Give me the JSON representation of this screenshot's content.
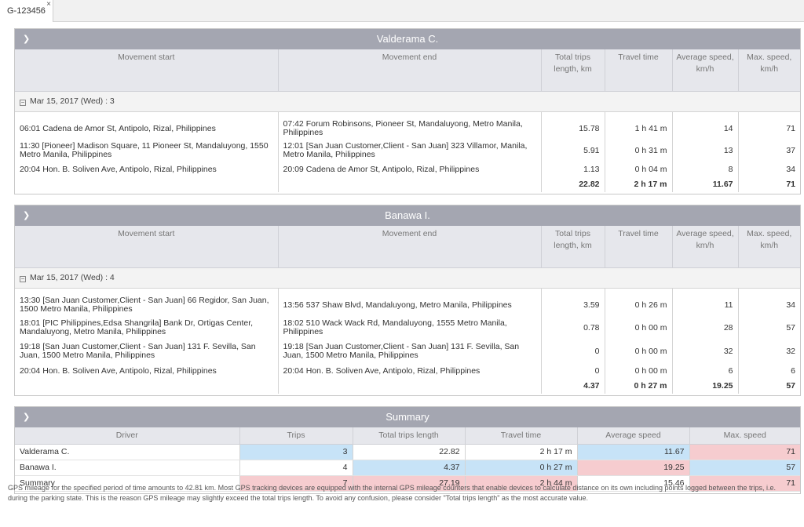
{
  "tab": {
    "label": "G-123456",
    "close": "×"
  },
  "columns": {
    "start": "Movement start",
    "end": "Movement end",
    "length": "Total trips length, km",
    "time": "Travel time",
    "avg": "Average speed, km/h",
    "max": "Max. speed, km/h"
  },
  "drivers": [
    {
      "name": "Valderama C.",
      "group": "Mar 15, 2017 (Wed) : 3",
      "rows": [
        {
          "start": "06:01 Cadena de Amor St, Antipolo, Rizal, Philippines",
          "end": "07:42 Forum Robinsons, Pioneer St, Mandaluyong, Metro Manila, Philippines",
          "length": "15.78",
          "time": "1 h 41 m",
          "avg": "14",
          "max": "71"
        },
        {
          "start": "11:30 [Pioneer] Madison Square, 11 Pioneer St, Mandaluyong, 1550 Metro Manila, Philippines",
          "end": "12:01 [San Juan Customer,Client - San Juan] 323 Villamor, Manila, Metro Manila, Philippines",
          "length": "5.91",
          "time": "0 h 31 m",
          "avg": "13",
          "max": "37"
        },
        {
          "start": "20:04 Hon. B. Soliven Ave, Antipolo, Rizal, Philippines",
          "end": "20:09 Cadena de Amor St, Antipolo, Rizal, Philippines",
          "length": "1.13",
          "time": "0 h 04 m",
          "avg": "8",
          "max": "34"
        }
      ],
      "total": {
        "length": "22.82",
        "time": "2 h 17 m",
        "avg": "11.67",
        "max": "71"
      }
    },
    {
      "name": "Banawa I.",
      "group": "Mar 15, 2017 (Wed) : 4",
      "rows": [
        {
          "start": "13:30 [San Juan Customer,Client - San Juan] 66 Regidor, San Juan, 1500 Metro Manila, Philippines",
          "end": "13:56 537 Shaw Blvd, Mandaluyong, Metro Manila, Philippines",
          "length": "3.59",
          "time": "0 h 26 m",
          "avg": "11",
          "max": "34"
        },
        {
          "start": "18:01 [PIC Philippines,Edsa Shangrila] Bank Dr, Ortigas Center, Mandaluyong, Metro Manila, Philippines",
          "end": "18:02 510 Wack Wack Rd, Mandaluyong, 1555 Metro Manila, Philippines",
          "length": "0.78",
          "time": "0 h 00 m",
          "avg": "28",
          "max": "57"
        },
        {
          "start": "19:18 [San Juan Customer,Client - San Juan] 131 F. Sevilla, San Juan, 1500 Metro Manila, Philippines",
          "end": "19:18 [San Juan Customer,Client - San Juan] 131 F. Sevilla, San Juan, 1500 Metro Manila, Philippines",
          "length": "0",
          "time": "0 h 00 m",
          "avg": "32",
          "max": "32"
        },
        {
          "start": "20:04 Hon. B. Soliven Ave, Antipolo, Rizal, Philippines",
          "end": "20:04 Hon. B. Soliven Ave, Antipolo, Rizal, Philippines",
          "length": "0",
          "time": "0 h 00 m",
          "avg": "6",
          "max": "6"
        }
      ],
      "total": {
        "length": "4.37",
        "time": "0 h 27 m",
        "avg": "19.25",
        "max": "57"
      }
    }
  ],
  "summary": {
    "title": "Summary",
    "columns": {
      "driver": "Driver",
      "trips": "Trips",
      "length": "Total trips length",
      "time": "Travel time",
      "avg": "Average speed",
      "max": "Max. speed"
    },
    "rows": [
      {
        "driver": "Valderama C.",
        "trips": "3",
        "length": "22.82",
        "time": "2 h 17 m",
        "avg": "11.67",
        "max": "71"
      },
      {
        "driver": "Banawa I.",
        "trips": "4",
        "length": "4.37",
        "time": "0 h 27 m",
        "avg": "19.25",
        "max": "57"
      },
      {
        "driver": "Summary",
        "trips": "7",
        "length": "27.19",
        "time": "2 h 44 m",
        "avg": "15.46",
        "max": "71"
      }
    ]
  },
  "highlight_colors": {
    "min": "#c7e3f7",
    "max": "#f6cccf"
  },
  "icons": {
    "collapse_panel": "chevron-down-icon",
    "collapse_group": "minus-box-icon"
  },
  "footnote": "GPS mileage for the specified period of time amounts to 42.81 km. Most GPS tracking devices are equipped with the internal GPS mileage counters that enable devices to calculate distance on its own including points logged between the trips, i.e. during the parking state. This is the reason GPS mileage may slightly exceed the total trips length. To avoid any confusion, please consider \"Total trips length\" as the most accurate value."
}
